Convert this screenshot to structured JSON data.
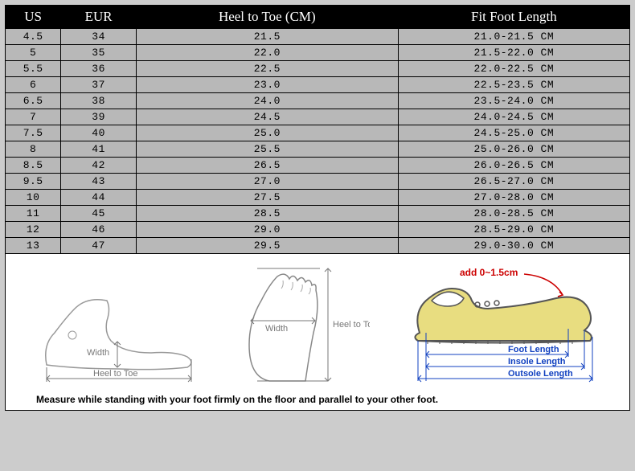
{
  "table": {
    "headers": [
      "US",
      "EUR",
      "Heel to Toe (CM)",
      "Fit Foot Length"
    ],
    "rows": [
      [
        "4.5",
        "34",
        "21.5",
        "21.0-21.5 CM"
      ],
      [
        "5",
        "35",
        "22.0",
        "21.5-22.0 CM"
      ],
      [
        "5.5",
        "36",
        "22.5",
        "22.0-22.5 CM"
      ],
      [
        "6",
        "37",
        "23.0",
        "22.5-23.5 CM"
      ],
      [
        "6.5",
        "38",
        "24.0",
        "23.5-24.0 CM"
      ],
      [
        "7",
        "39",
        "24.5",
        "24.0-24.5 CM"
      ],
      [
        "7.5",
        "40",
        "25.0",
        "24.5-25.0 CM"
      ],
      [
        "8",
        "41",
        "25.5",
        "25.0-26.0 CM"
      ],
      [
        "8.5",
        "42",
        "26.5",
        "26.0-26.5 CM"
      ],
      [
        "9.5",
        "43",
        "27.0",
        "26.5-27.0 CM"
      ],
      [
        "10",
        "44",
        "27.5",
        "27.0-28.0 CM"
      ],
      [
        "11",
        "45",
        "28.5",
        "28.0-28.5 CM"
      ],
      [
        "12",
        "46",
        "29.0",
        "28.5-29.0 CM"
      ],
      [
        "13",
        "47",
        "29.5",
        "29.0-30.0 CM"
      ]
    ]
  },
  "diagram": {
    "side_width_label": "Width",
    "side_heel_label": "Heel to Toe",
    "top_width_label": "Width",
    "top_heel_label": "Heel to Toe",
    "shoe_add_label": "add 0~1.5cm",
    "shoe_foot_label": "Foot Length",
    "shoe_insole_label": "Insole Length",
    "shoe_outsole_label": "Outsole Length"
  },
  "caption": "Measure while standing with your foot firmly on the floor and parallel to your other foot.",
  "style": {
    "header_bg": "#000000",
    "header_fg": "#ffffff",
    "cell_bg": "#b8b8b8",
    "page_bg": "#cccccc",
    "red": "#cc0000",
    "blue": "#1040c0",
    "shoe_fill": "#e8dd80"
  }
}
